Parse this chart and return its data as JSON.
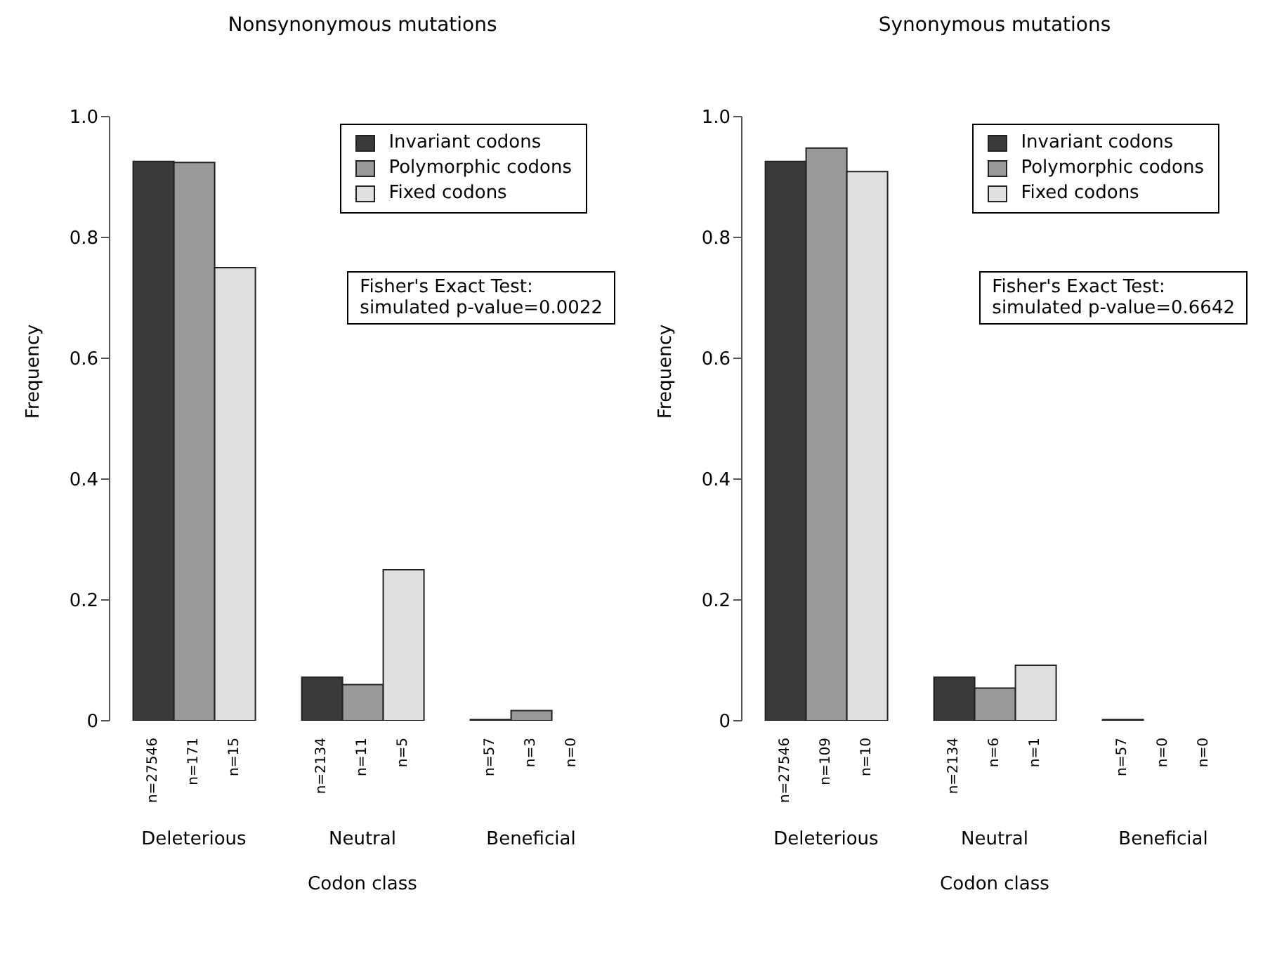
{
  "chart_data": [
    {
      "type": "bar",
      "title": "Nonsynonymous mutations",
      "xlabel": "Codon class",
      "ylabel": "Frequency",
      "categories": [
        "Deleterious",
        "Neutral",
        "Beneficial"
      ],
      "series": [
        {
          "name": "Invariant codons",
          "color": "#3a3a3a",
          "values": [
            0.926,
            0.072,
            0.002
          ]
        },
        {
          "name": "Polymorphic codons",
          "color": "#999999",
          "values": [
            0.924,
            0.06,
            0.017
          ]
        },
        {
          "name": "Fixed codons",
          "color": "#e0e0e0",
          "values": [
            0.75,
            0.25,
            0
          ]
        }
      ],
      "ylim": [
        0,
        1
      ],
      "yticks": [
        0,
        0.2,
        0.4,
        0.6,
        0.8,
        {
          "value": 1,
          "label": "1.0"
        }
      ],
      "grid": false,
      "legend": "top right",
      "annotations": [
        "Fisher's Exact Test:\nsimulated p-value=0.0022",
        "n=27546",
        "n=171",
        "n=15",
        "n=2134",
        "n=11",
        "n=5",
        "n=57",
        "n=3",
        "n=0"
      ]
    },
    {
      "type": "bar",
      "title": "Synonymous mutations",
      "xlabel": "Codon class",
      "ylabel": "Frequency",
      "categories": [
        "Deleterious",
        "Neutral",
        "Beneficial"
      ],
      "series": [
        {
          "name": "Invariant codons",
          "color": "#3a3a3a",
          "values": [
            0.926,
            0.072,
            0.002
          ]
        },
        {
          "name": "Polymorphic codons",
          "color": "#999999",
          "values": [
            0.948,
            0.054,
            0
          ]
        },
        {
          "name": "Fixed codons",
          "color": "#e0e0e0",
          "values": [
            0.909,
            0.092,
            0
          ]
        }
      ],
      "ylim": [
        0,
        1
      ],
      "yticks": [
        0,
        0.2,
        0.4,
        0.6,
        0.8,
        {
          "value": 1,
          "label": "1.0"
        }
      ],
      "grid": false,
      "legend": "top right",
      "annotations": [
        "Fisher's Exact Test:\nsimulated p-value=0.6642",
        "n=27546",
        "n=109",
        "n=10",
        "n=2134",
        "n=6",
        "n=1",
        "n=57",
        "n=0",
        "n=0"
      ]
    }
  ]
}
